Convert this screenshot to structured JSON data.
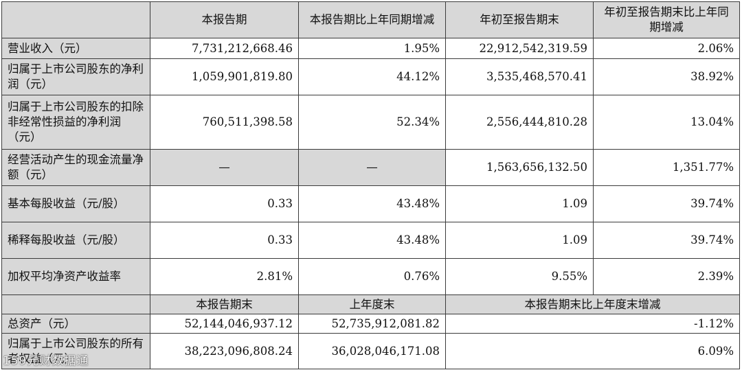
{
  "table": {
    "top_headers": [
      "本报告期",
      "本报告期比上年同期增减",
      "年初至报告期末",
      "年初至报告期末比上年同期增减"
    ],
    "rows": [
      {
        "label": "营业收入（元）",
        "v1": "7,731,212,668.46",
        "v2": "1.95%",
        "v3": "22,912,542,319.59",
        "v4": "2.06%"
      },
      {
        "label": "归属于上市公司股东的净利润（元）",
        "v1": "1,059,901,819.80",
        "v2": "44.12%",
        "v3": "3,535,468,570.41",
        "v4": "38.92%"
      },
      {
        "label": "归属于上市公司股东的扣除非经常性损益的净利润（元）",
        "v1": "760,511,398.58",
        "v2": "52.34%",
        "v3": "2,556,444,810.28",
        "v4": "13.04%"
      },
      {
        "label": "经营活动产生的现金流量净额（元）",
        "v1": "—",
        "v2": "—",
        "v3": "1,563,656,132.50",
        "v4": "1,351.77%"
      },
      {
        "label": "基本每股收益（元/股）",
        "v1": "0.33",
        "v2": "43.48%",
        "v3": "1.09",
        "v4": "39.74%"
      },
      {
        "label": "稀释每股收益（元/股）",
        "v1": "0.33",
        "v2": "43.48%",
        "v3": "1.09",
        "v4": "39.74%"
      },
      {
        "label": "加权平均净资产收益率",
        "v1": "2.81%",
        "v2": "0.76%",
        "v3": "9.55%",
        "v4": "2.39%"
      }
    ],
    "sub_headers": [
      "本报告期末",
      "上年度末",
      "本报告期末比上年度末增减"
    ],
    "rows2": [
      {
        "label": "总资产（元）",
        "v1": "52,144,046,937.12",
        "v2": "52,735,912,081.82",
        "v3": "-1.12%"
      },
      {
        "label": "归属于上市公司股东的所有者权益（元）",
        "v1": "38,223,096,808.24",
        "v2": "36,028,046,171.08",
        "v3": "6.09%"
      }
    ]
  },
  "watermark": "159元财数据通"
}
